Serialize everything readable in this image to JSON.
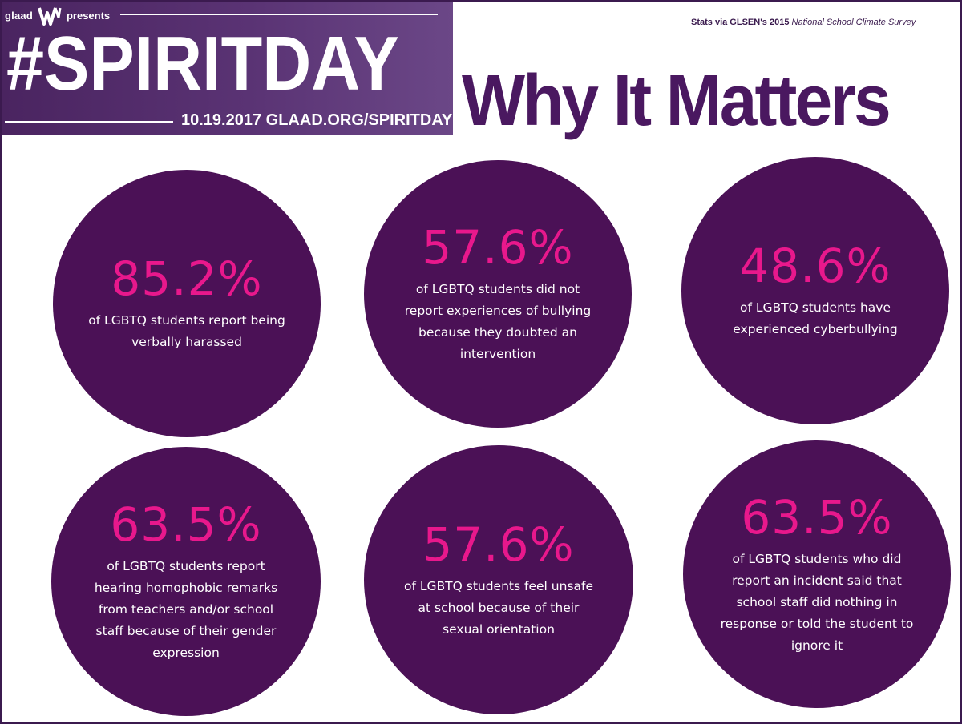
{
  "banner": {
    "brand": "glaad",
    "presents": "presents",
    "hashtag": "#SPIRITDAY",
    "date_url": "10.19.2017 GLAAD.ORG/SPIRITDAY",
    "colors": {
      "background": "#4a2460",
      "text": "#ffffff"
    },
    "logo_icon": "glaad-logo-mark"
  },
  "source": {
    "prefix": "Stats via GLSEN's 2015 ",
    "title": "National School Climate Survey"
  },
  "heading": "Why It Matters",
  "colors": {
    "circle": "#4b1156",
    "stat": "#e8188c",
    "heading": "#4a1860"
  },
  "stats": [
    {
      "value": "85.2%",
      "lines": [
        "of LGBTQ students report being",
        "verbally harassed"
      ]
    },
    {
      "value": "57.6%",
      "lines": [
        "of LGBTQ students did not",
        "report experiences of bullying",
        "because they doubted an",
        "intervention"
      ]
    },
    {
      "value": "48.6%",
      "lines": [
        "of LGBTQ students have",
        "experienced cyberbullying"
      ]
    },
    {
      "value": "63.5%",
      "lines": [
        "of LGBTQ students report",
        "hearing homophobic remarks",
        "from teachers and/or school",
        "staff because of their gender",
        "expression"
      ]
    },
    {
      "value": "57.6%",
      "lines": [
        "of LGBTQ students feel unsafe",
        "at school because of their",
        "sexual orientation"
      ]
    },
    {
      "value": "63.5%",
      "lines": [
        "of LGBTQ students who did",
        "report an incident said that",
        "school staff did nothing in",
        "response or told the student to",
        "ignore it"
      ]
    }
  ]
}
